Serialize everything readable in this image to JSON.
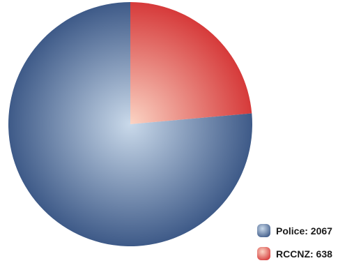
{
  "chart_data": {
    "type": "pie",
    "slices": [
      {
        "label": "Police",
        "value": 2067,
        "color": "#3e5a88",
        "highlight": "#c9d9ea"
      },
      {
        "label": "RCCNZ",
        "value": 638,
        "color": "#d63a3a",
        "highlight": "#fbd4c4"
      }
    ],
    "start_angle_deg": 0,
    "direction": "clockwise",
    "legend_position": "bottom-right",
    "title": ""
  }
}
